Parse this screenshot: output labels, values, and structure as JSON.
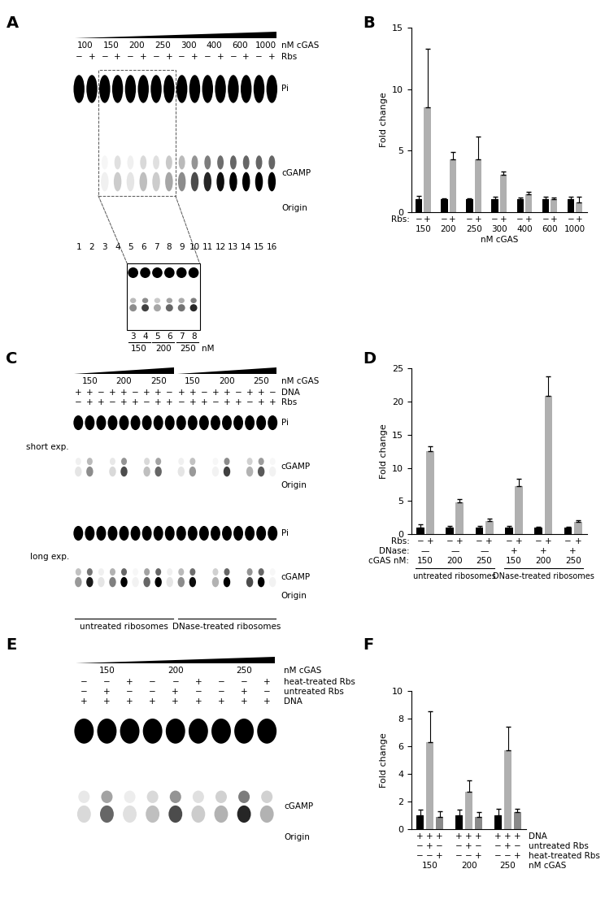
{
  "gels": [
    {
      "panel_label": "A",
      "concentration_sets": [
        [
          "100",
          "150",
          "200",
          "250",
          "300",
          "400",
          "600",
          "1000"
        ]
      ],
      "concentration_label": "nM cGAS",
      "lane_rows": [
        {
          "label": "Rbs",
          "values": [
            "−",
            "+",
            "−",
            "+",
            "−",
            "+",
            "−",
            "+",
            "−",
            "+",
            "−",
            "+",
            "−",
            "+",
            "−",
            "+"
          ]
        }
      ],
      "band_labels": {
        "top": "Pi",
        "product": "cGAMP",
        "origin": "Origin"
      },
      "lane_numbers": [
        1,
        2,
        3,
        4,
        5,
        6,
        7,
        8,
        9,
        10,
        11,
        12,
        13,
        14,
        15,
        16
      ],
      "images": [
        {
          "cgamp_signal": [
            0,
            0,
            0.06,
            0.2,
            0.1,
            0.25,
            0.2,
            0.35,
            0.45,
            0.7,
            0.85,
            0.95,
            1,
            1,
            1,
            1
          ]
        }
      ],
      "inset": {
        "lane_numbers": [
          3,
          4,
          5,
          6,
          7,
          8
        ],
        "concentrations": [
          "150",
          "200",
          "250"
        ],
        "unit": "nM",
        "cgamp_signal": [
          0.45,
          0.75,
          0.35,
          0.6,
          0.55,
          0.85
        ]
      }
    },
    {
      "panel_label": "C",
      "concentration_sets": [
        [
          "150",
          "200",
          "250"
        ],
        [
          "150",
          "200",
          "250"
        ]
      ],
      "concentration_label": "nM cGAS",
      "lane_rows": [
        {
          "label": "DNA",
          "values": [
            "+",
            "+",
            "−",
            "+",
            "+",
            "−",
            "+",
            "+",
            "−",
            "+",
            "+",
            "−",
            "+",
            "+",
            "−",
            "+",
            "+",
            "−"
          ]
        },
        {
          "label": "Rbs",
          "values": [
            "−",
            "+",
            "+",
            "−",
            "+",
            "+",
            "−",
            "+",
            "+",
            "−",
            "+",
            "+",
            "−",
            "+",
            "+",
            "−",
            "+",
            "+"
          ]
        }
      ],
      "band_labels": {
        "top": "Pi",
        "product": "cGAMP",
        "origin": "Origin"
      },
      "images": [
        {
          "label": "short exp.",
          "cgamp_signal": [
            0.1,
            0.45,
            0,
            0.15,
            0.7,
            0,
            0.25,
            0.6,
            0,
            0.1,
            0.4,
            0,
            0.05,
            0.75,
            0,
            0.3,
            0.65,
            0.05
          ]
        },
        {
          "label": "long exp.",
          "cgamp_signal": [
            0.4,
            0.9,
            0.1,
            0.5,
            1,
            0.05,
            0.6,
            1,
            0.1,
            0.45,
            0.95,
            0,
            0.3,
            1,
            0,
            0.7,
            1,
            0.05
          ]
        }
      ],
      "brackets": [
        "untreated ribosomes",
        "DNase-treated ribosomes"
      ]
    },
    {
      "panel_label": "E",
      "concentration_sets": [
        [
          "150",
          "200",
          "250"
        ]
      ],
      "concentration_label": "nM cGAS",
      "lane_rows": [
        {
          "label": "heat-treated Rbs",
          "values": [
            "−",
            "−",
            "+",
            "−",
            "−",
            "+",
            "−",
            "−",
            "+"
          ]
        },
        {
          "label": "untreated Rbs",
          "values": [
            "−",
            "+",
            "−",
            "−",
            "+",
            "−",
            "−",
            "+",
            "−"
          ]
        },
        {
          "label": "DNA",
          "values": [
            "+",
            "+",
            "+",
            "+",
            "+",
            "+",
            "+",
            "+",
            "+"
          ]
        }
      ],
      "band_labels": {
        "product": "cGAMP",
        "origin": "Origin"
      },
      "images": [
        {
          "cgamp_signal": [
            0.15,
            0.6,
            0.12,
            0.25,
            0.7,
            0.2,
            0.3,
            0.85,
            0.3
          ]
        }
      ]
    }
  ],
  "chart_data": [
    {
      "panel_label": "B",
      "type": "bar",
      "ylabel": "Fold change",
      "xlabel": "nM cGAS",
      "ylim": [
        0,
        15
      ],
      "yticks": [
        0,
        5,
        10,
        15
      ],
      "groups": [
        "150",
        "200",
        "250",
        "300",
        "400",
        "600",
        "1000"
      ],
      "bar_rows": [
        {
          "label": "Rbs:",
          "values": [
            "−",
            "+",
            "−",
            "+",
            "−",
            "+",
            "−",
            "+",
            "−",
            "+",
            "−",
            "+",
            "−",
            "+"
          ]
        }
      ],
      "series": [
        {
          "color": "#000000",
          "values": [
            1,
            1,
            1,
            1,
            1,
            1,
            1
          ],
          "errors": [
            0.3,
            0.1,
            0.1,
            0.25,
            0.15,
            0.2,
            0.2
          ]
        },
        {
          "color": "#b0b0b0",
          "values": [
            8.5,
            4.3,
            4.3,
            3.0,
            1.4,
            1.0,
            0.8
          ],
          "errors": [
            4.8,
            0.6,
            1.8,
            0.25,
            0.2,
            0.15,
            0.4
          ]
        }
      ]
    },
    {
      "panel_label": "D",
      "type": "bar",
      "ylabel": "Fold change",
      "ylim": [
        0,
        25
      ],
      "yticks": [
        0,
        5,
        10,
        15,
        20,
        25
      ],
      "groups": [
        "150",
        "200",
        "250",
        "150",
        "200",
        "250"
      ],
      "group_label": "cGAS nM:",
      "bar_rows": [
        {
          "label": "Rbs:",
          "values": [
            "−",
            "+",
            "−",
            "+",
            "−",
            "+",
            "−",
            "+",
            "−",
            "+",
            "−",
            "+"
          ]
        }
      ],
      "group_rows": [
        {
          "label": "DNase:",
          "values": [
            "—",
            "—",
            "—",
            "+",
            "+",
            "+"
          ]
        }
      ],
      "brackets": [
        "untreated ribosomes",
        "DNase-treated ribosomes"
      ],
      "series": [
        {
          "color": "#000000",
          "values": [
            1,
            1,
            1,
            1,
            1,
            1
          ],
          "errors": [
            0.5,
            0.3,
            0.3,
            0.3,
            0.1,
            0.1
          ]
        },
        {
          "color": "#b0b0b0",
          "values": [
            12.5,
            4.8,
            2.0,
            7.3,
            20.8,
            1.8
          ],
          "errors": [
            0.8,
            0.5,
            0.4,
            1.0,
            3.0,
            0.3
          ]
        }
      ]
    },
    {
      "panel_label": "F",
      "type": "bar",
      "ylabel": "Fold change",
      "ylim": [
        0,
        10
      ],
      "yticks": [
        0,
        2,
        4,
        6,
        8,
        10
      ],
      "groups": [
        "150",
        "200",
        "250"
      ],
      "group_label": "nM cGAS",
      "bar_rows": [
        {
          "label": "DNA",
          "values": [
            "+",
            "+",
            "+",
            "+",
            "+",
            "+",
            "+",
            "+",
            "+"
          ]
        },
        {
          "label": "untreated Rbs",
          "values": [
            "−",
            "+",
            "−",
            "−",
            "+",
            "−",
            "−",
            "+",
            "−"
          ]
        },
        {
          "label": "heat-treated Rbs",
          "values": [
            "−",
            "−",
            "+",
            "−",
            "−",
            "+",
            "−",
            "−",
            "+"
          ]
        }
      ],
      "series": [
        {
          "color": "#000000",
          "values": [
            1,
            1,
            1
          ],
          "errors": [
            0.4,
            0.4,
            0.45
          ]
        },
        {
          "color": "#b0b0b0",
          "values": [
            6.3,
            2.7,
            5.7
          ],
          "errors": [
            2.2,
            0.8,
            1.7
          ]
        },
        {
          "color": "#8a8a8a",
          "values": [
            0.85,
            0.85,
            1.2
          ],
          "errors": [
            0.45,
            0.35,
            0.25
          ]
        }
      ]
    }
  ]
}
